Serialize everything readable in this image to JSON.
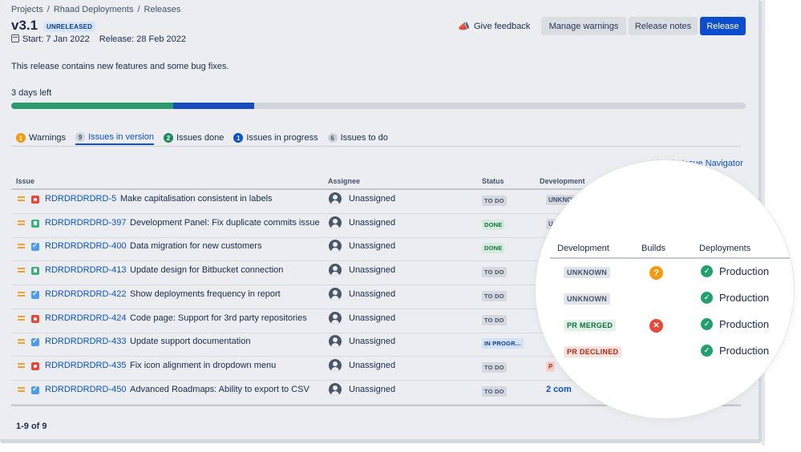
{
  "breadcrumb": [
    "Projects",
    "Rhaad Deployments",
    "Releases"
  ],
  "version": {
    "title": "v3.1",
    "badge": "UNRELEASED",
    "start": "Start: 7 Jan 2022",
    "release": "Release: 28 Feb 2022"
  },
  "header_actions": {
    "feedback": "Give feedback",
    "manage_warnings": "Manage warnings",
    "release_notes": "Release notes",
    "release": "Release"
  },
  "description": "This release contains new features and some bug fixes.",
  "days_left": "3 days left",
  "progress": {
    "done_fraction": 0.22,
    "in_progress_fraction": 0.11
  },
  "tabs": [
    {
      "count": "1",
      "label": "Warnings"
    },
    {
      "count": "9",
      "label": "Issues in version"
    },
    {
      "count": "2",
      "label": "Issues done"
    },
    {
      "count": "1",
      "label": "Issues in progress"
    },
    {
      "count": "6",
      "label": "Issues to do"
    }
  ],
  "view_link": "View in Issue Navigator",
  "columns": {
    "issue": "Issue",
    "assignee": "Assignee",
    "status": "Status",
    "development": "Development"
  },
  "issues": [
    {
      "type": "bug",
      "key": "RDRDRDRDRD-5",
      "summary": "Make capitalisation consistent in labels",
      "assignee": "Unassigned",
      "status": "TO DO",
      "development": "UNKNOWN"
    },
    {
      "type": "story",
      "key": "RDRDRDRDRD-397",
      "summary": "Development Panel: Fix duplicate commits issue",
      "assignee": "Unassigned",
      "status": "DONE",
      "development": "U"
    },
    {
      "type": "task",
      "key": "RDRDRDRDRD-400",
      "summary": "Data migration for new customers",
      "assignee": "Unassigned",
      "status": "DONE",
      "development": ""
    },
    {
      "type": "story",
      "key": "RDRDRDRDRD-413",
      "summary": "Update design for Bitbucket connection",
      "assignee": "Unassigned",
      "status": "TO DO",
      "development": ""
    },
    {
      "type": "task",
      "key": "RDRDRDRDRD-422",
      "summary": "Show deployments frequency in report",
      "assignee": "Unassigned",
      "status": "TO DO",
      "development": ""
    },
    {
      "type": "bug",
      "key": "RDRDRDRDRD-424",
      "summary": "Code page: Support for 3rd party repositories",
      "assignee": "Unassigned",
      "status": "TO DO",
      "development": ""
    },
    {
      "type": "task",
      "key": "RDRDRDRDRD-433",
      "summary": "Update support documentation",
      "assignee": "Unassigned",
      "status": "IN PROGR...",
      "development": ""
    },
    {
      "type": "bug",
      "key": "RDRDRDRDRD-435",
      "summary": "Fix icon alignment in dropdown menu",
      "assignee": "Unassigned",
      "status": "TO DO",
      "development": "P"
    },
    {
      "type": "task",
      "key": "RDRDRDRDRD-450",
      "summary": "Advanced Roadmaps: Ability to export to CSV",
      "assignee": "Unassigned",
      "status": "TO DO",
      "development": "2 com"
    }
  ],
  "pagination": "1-9 of 9",
  "magnifier": {
    "columns": {
      "development": "Development",
      "builds": "Builds",
      "deployments": "Deployments"
    },
    "rows": [
      {
        "development": "UNKNOWN",
        "dev_style": "grey",
        "build": "unknown",
        "build_icon": "question-icon",
        "deployment": "Production"
      },
      {
        "development": "UNKNOWN",
        "dev_style": "grey",
        "build": "",
        "deployment": "Production"
      },
      {
        "development": "PR MERGED",
        "dev_style": "green",
        "build": "failed",
        "build_icon": "cross-icon",
        "deployment": "Production"
      },
      {
        "development": "PR DECLINED",
        "dev_style": "red",
        "build": "",
        "deployment": "Production"
      }
    ]
  }
}
